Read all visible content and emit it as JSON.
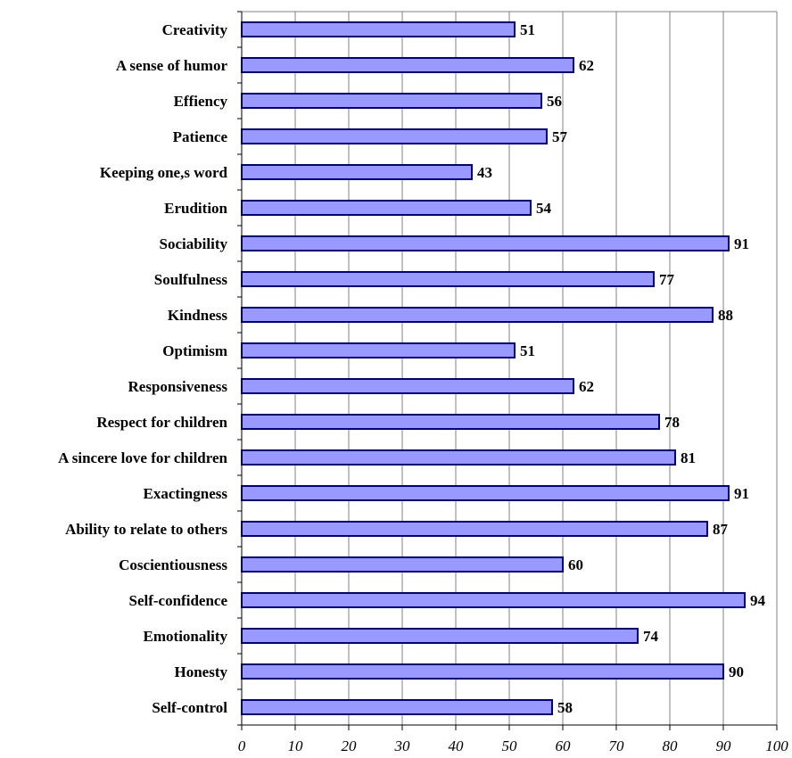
{
  "chart_data": {
    "type": "bar",
    "orientation": "horizontal",
    "categories": [
      "Creativity",
      "A sense of humor",
      "Effiency",
      "Patience",
      "Keeping one,s word",
      "Erudition",
      "Sociability",
      "Soulfulness",
      "Kindness",
      "Optimism",
      "Responsiveness",
      "Respect for children",
      "A sincere love for children",
      "Exactingness",
      "Ability to relate to others",
      "Coscientiousness",
      "Self-confidence",
      "Emotionality",
      "Honesty",
      "Self-control"
    ],
    "values": [
      51,
      62,
      56,
      57,
      43,
      54,
      91,
      77,
      88,
      51,
      62,
      78,
      81,
      91,
      87,
      60,
      94,
      74,
      90,
      58
    ],
    "xlim": [
      0,
      100
    ],
    "xticks": [
      0,
      10,
      20,
      30,
      40,
      50,
      60,
      70,
      80,
      90,
      100
    ],
    "grid": "vertical",
    "data_labels": true,
    "legend": "none",
    "colors": {
      "bar_fill": "#9999ff",
      "bar_stroke": "#000080",
      "grid": "#808080",
      "axis": "#808080"
    }
  }
}
